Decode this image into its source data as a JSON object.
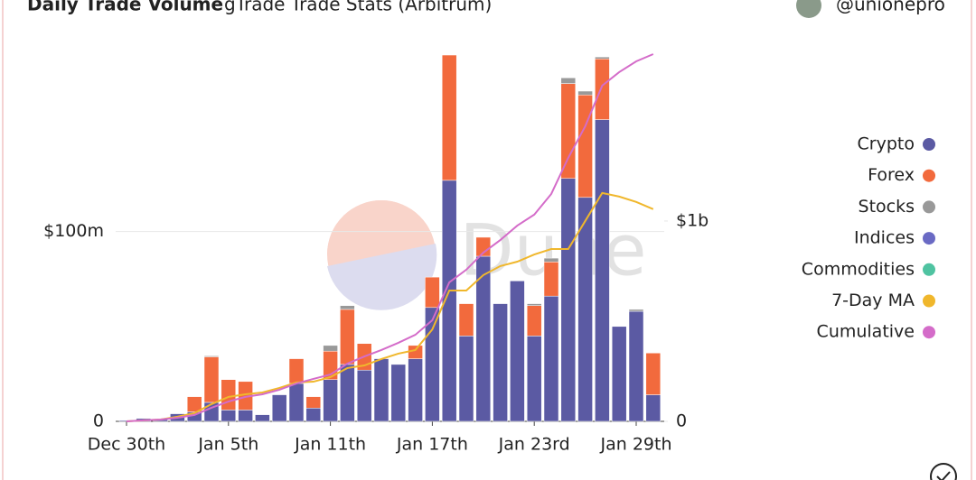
{
  "chart_data": {
    "type": "bar",
    "stacked": true,
    "title": "Daily Trade Volume",
    "subtitle": "gTrade Trade Stats (Arbitrum)",
    "author": "@unionepro",
    "watermark": "Dune",
    "categories": [
      "Dec 30th",
      null,
      null,
      null,
      null,
      null,
      "Jan 5th",
      null,
      null,
      null,
      null,
      null,
      "Jan 11th",
      null,
      null,
      null,
      null,
      null,
      "Jan 17th",
      null,
      null,
      null,
      null,
      null,
      "Jan 23rd",
      null,
      null,
      null,
      null,
      null,
      "Jan 29th",
      null
    ],
    "ylim": [
      0,
      203
    ],
    "yticks": [
      0,
      {
        "value": 100,
        "label": "$100m"
      }
    ],
    "y2lim": [
      0,
      1923
    ],
    "y2ticks": [
      0,
      {
        "value": 1000,
        "label": "$1b"
      }
    ],
    "grid": true,
    "legend": "right",
    "series": [
      {
        "name": "Crypto",
        "color": "#5b5aa3",
        "values": [
          0.5,
          1.5,
          1,
          4,
          5,
          10,
          6,
          6,
          3.5,
          14,
          20,
          7,
          22,
          30,
          27,
          33,
          30,
          33,
          60,
          127,
          45,
          87,
          62,
          74,
          45,
          66,
          128,
          118,
          159,
          50,
          58,
          14
        ]
      },
      {
        "name": "Forex",
        "color": "#f26a3d",
        "values": [
          0,
          0,
          0,
          0,
          8,
          24,
          16,
          15,
          0,
          0,
          13,
          6,
          15,
          29,
          14,
          0,
          0,
          7,
          16,
          66,
          17,
          10,
          0,
          0,
          16,
          18,
          50,
          54,
          32,
          0,
          0,
          22
        ]
      },
      {
        "name": "Stocks",
        "color": "#999999",
        "values": [
          0,
          0,
          0,
          0,
          0,
          0.5,
          0,
          0,
          0,
          0,
          0,
          0,
          3,
          2,
          0,
          0,
          0,
          0,
          0,
          0,
          0,
          0,
          0,
          0,
          1,
          2,
          3,
          2,
          1,
          0,
          1,
          0
        ]
      },
      {
        "name": "Indices",
        "color": "#6a6ac4",
        "values": [
          0,
          0,
          0,
          0,
          0,
          0,
          0,
          0,
          0,
          0,
          0,
          0,
          0,
          0,
          0,
          0,
          0,
          0,
          0,
          0,
          0,
          0,
          0,
          0,
          0,
          0,
          0,
          0,
          0,
          0,
          0,
          0
        ]
      },
      {
        "name": "Commodities",
        "color": "#4fc3a1",
        "values": [
          0,
          0,
          0,
          0,
          0,
          0,
          0,
          0,
          0,
          0,
          0,
          0,
          0,
          0,
          0,
          0,
          0,
          0,
          0,
          0,
          0,
          0,
          0,
          0,
          0,
          0,
          0,
          0,
          0,
          0,
          0,
          0
        ]
      },
      {
        "name": "7-Day MA",
        "color": "#f0b72c",
        "type": "line",
        "axis": "y2",
        "values": [
          0,
          5,
          9,
          23,
          41,
          86,
          122,
          135,
          144,
          167,
          194,
          198,
          221,
          266,
          279,
          311,
          338,
          356,
          459,
          653,
          653,
          730,
          775,
          797,
          833,
          860,
          860,
          1000,
          1140,
          1122,
          1095,
          1059
        ]
      },
      {
        "name": "Cumulative",
        "color": "#d46cc9",
        "type": "line",
        "axis": "y2",
        "values": [
          0,
          5,
          9,
          18,
          32,
          68,
          99,
          122,
          135,
          158,
          189,
          212,
          234,
          288,
          324,
          356,
          392,
          432,
          505,
          694,
          757,
          842,
          905,
          977,
          1032,
          1135,
          1315,
          1473,
          1676,
          1743,
          1797,
          1833
        ]
      }
    ]
  }
}
